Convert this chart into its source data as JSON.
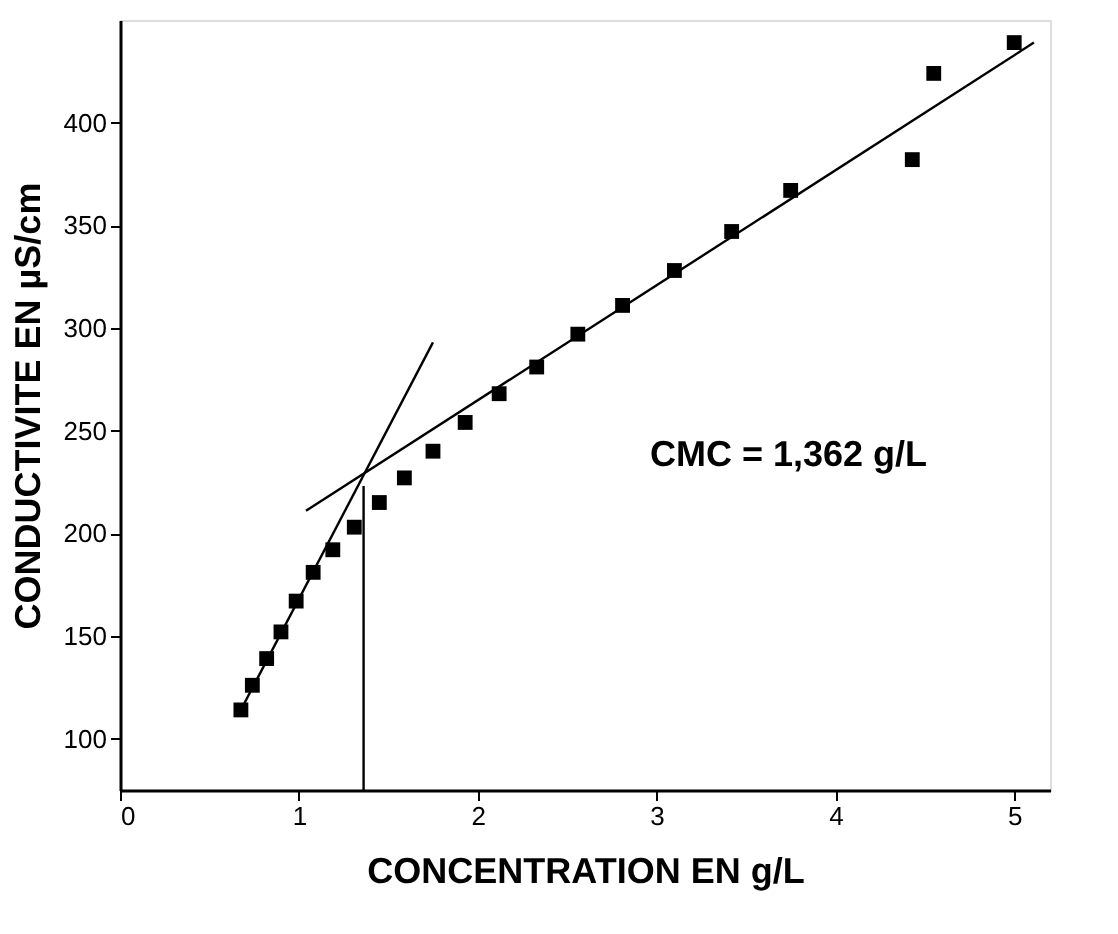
{
  "chart_data": {
    "type": "scatter",
    "xlabel": "CONCENTRATION EN g/L",
    "ylabel": "CONDUCTIVITE EN µS/cm",
    "xlim": [
      0,
      5.2
    ],
    "xticks": [
      0,
      1,
      2,
      3,
      4,
      5
    ],
    "ylim": [
      75,
      450
    ],
    "yticks": [
      100,
      150,
      200,
      250,
      300,
      350,
      400
    ],
    "annotations": [
      "CMC = 1,362 g/L"
    ],
    "series": [
      {
        "marker": "square",
        "color": "#000000",
        "x": [
          0.676,
          0.74,
          0.82,
          0.9,
          0.985,
          1.08,
          1.19,
          1.31,
          1.45,
          1.59,
          1.75,
          1.93,
          2.12,
          2.33,
          2.56,
          2.81,
          3.1,
          3.42,
          3.75,
          4.43,
          4.55,
          5.0
        ],
        "values": [
          114,
          126,
          139,
          152,
          167,
          181,
          192,
          203,
          215,
          227,
          240,
          254,
          268,
          281,
          297,
          311,
          328,
          347,
          367,
          382,
          424,
          439
        ]
      },
      {
        "type": "line",
        "marker": "none",
        "color": "#000000",
        "x": [
          0.676,
          1.75
        ],
        "values": [
          114,
          293
        ]
      },
      {
        "type": "line",
        "marker": "none",
        "color": "#000000",
        "x": [
          1.04,
          5.11
        ],
        "values": [
          211,
          439
        ]
      },
      {
        "type": "line",
        "marker": "none",
        "color": "#000000",
        "x": [
          1.362,
          1.362
        ],
        "values": [
          75,
          223
        ]
      }
    ]
  }
}
